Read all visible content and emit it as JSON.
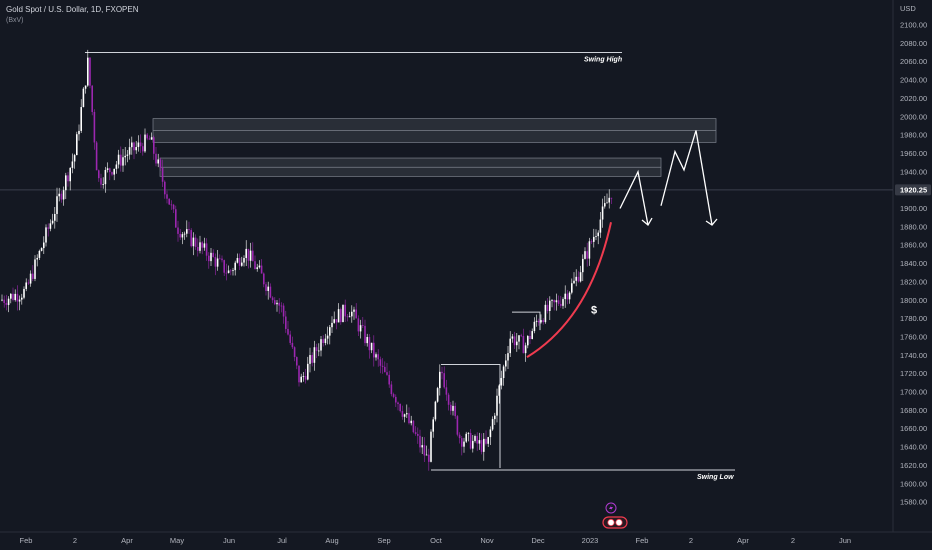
{
  "header": {
    "symbol_title": "Gold Spot / U.S. Dollar, 1D, FXOPEN",
    "subtitle": "(BxV)"
  },
  "price_axis": {
    "currency": "USD",
    "ticks": [
      "2100.00",
      "2080.00",
      "2060.00",
      "2040.00",
      "2020.00",
      "2000.00",
      "1980.00",
      "1960.00",
      "1940.00",
      "1920.00",
      "1900.00",
      "1880.00",
      "1860.00",
      "1840.00",
      "1820.00",
      "1800.00",
      "1780.00",
      "1760.00",
      "1740.00",
      "1720.00",
      "1700.00",
      "1680.00",
      "1660.00",
      "1640.00",
      "1620.00",
      "1600.00",
      "1580.00"
    ],
    "current_price_label": "1920.25"
  },
  "time_axis": {
    "labels": [
      "Feb",
      "2",
      "Apr",
      "May",
      "Jun",
      "Jul",
      "Aug",
      "Sep",
      "Oct",
      "Nov",
      "Dec",
      "2023",
      "Feb",
      "2",
      "Apr",
      "2",
      "Jun"
    ]
  },
  "annotations": {
    "swing_high_label": "Swing High",
    "swing_low_label": "Swing Low",
    "dollar_marker": "$",
    "event_icon": "lightning-icon",
    "flag_icon": "us-flag-icon"
  },
  "colors": {
    "background": "#141822",
    "candle_up": "#ffffff",
    "candle_down": "#9c27b0",
    "zones": "#9aa0ab",
    "curve": "#ef3b4f",
    "price_label_bg": "#363a45"
  },
  "chart_data": {
    "type": "candlestick",
    "symbol": "Gold Spot / U.S. Dollar",
    "timeframe": "1D",
    "price_range": [
      1580,
      2100
    ],
    "swing_high": 2070,
    "swing_low": 1615,
    "current_price": 1920.25,
    "resistance_zones": [
      [
        1972,
        1998
      ],
      [
        1935,
        1955
      ]
    ],
    "support_level_nov": 1787,
    "oct_range_top": 1730,
    "projection_path": [
      1900,
      1940,
      1880,
      1960,
      1985,
      1880
    ],
    "close_path": [
      {
        "date": "Jan",
        "price": 1800
      },
      {
        "date": "Feb",
        "price": 1810
      },
      {
        "date": "2",
        "price": 1960
      },
      {
        "date": "early Mar",
        "price": 2060
      },
      {
        "date": "mid Mar",
        "price": 1930
      },
      {
        "date": "Apr",
        "price": 1960
      },
      {
        "date": "mid Apr",
        "price": 1975
      },
      {
        "date": "May",
        "price": 1880
      },
      {
        "date": "Jun",
        "price": 1830
      },
      {
        "date": "mid Jun",
        "price": 1855
      },
      {
        "date": "Jul",
        "price": 1790
      },
      {
        "date": "mid Jul",
        "price": 1710
      },
      {
        "date": "Aug",
        "price": 1780
      },
      {
        "date": "mid Aug",
        "price": 1790
      },
      {
        "date": "Sep",
        "price": 1720
      },
      {
        "date": "late Sep",
        "price": 1625
      },
      {
        "date": "Oct",
        "price": 1725
      },
      {
        "date": "mid Oct",
        "price": 1650
      },
      {
        "date": "Nov",
        "price": 1640
      },
      {
        "date": "early Nov",
        "price": 1760
      },
      {
        "date": "mid Nov",
        "price": 1750
      },
      {
        "date": "Dec",
        "price": 1780
      },
      {
        "date": "mid Dec",
        "price": 1800
      },
      {
        "date": "late Dec",
        "price": 1820
      },
      {
        "date": "2023",
        "price": 1860
      },
      {
        "date": "early Jan",
        "price": 1920
      }
    ]
  }
}
